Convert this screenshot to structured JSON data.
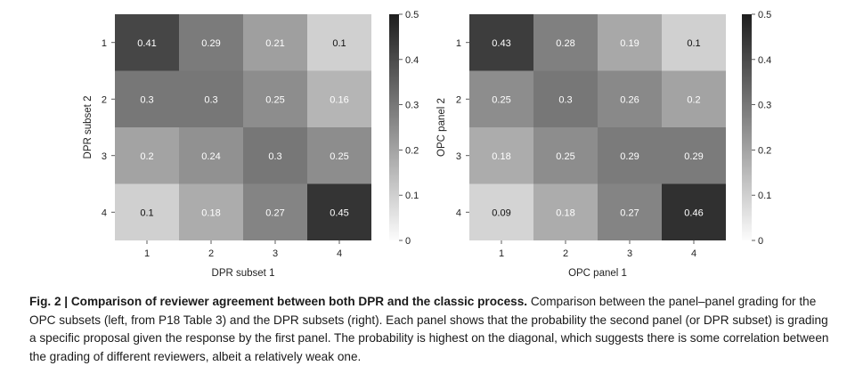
{
  "colorbar_ticks": [
    "0.5",
    "0.4",
    "0.3",
    "0.2",
    "0.1",
    "0"
  ],
  "chart_data": [
    {
      "type": "heatmap",
      "title": "",
      "xlabel": "DPR subset 1",
      "ylabel": "DPR subset 2",
      "x_categories": [
        "1",
        "2",
        "3",
        "4"
      ],
      "y_categories": [
        "1",
        "2",
        "3",
        "4"
      ],
      "values": [
        [
          0.41,
          0.29,
          0.21,
          0.1
        ],
        [
          0.3,
          0.3,
          0.25,
          0.16
        ],
        [
          0.2,
          0.24,
          0.3,
          0.25
        ],
        [
          0.1,
          0.18,
          0.27,
          0.45
        ]
      ],
      "colorbar_range": [
        0,
        0.5
      ],
      "colormap": "grayscale",
      "legend": "colorbar-right"
    },
    {
      "type": "heatmap",
      "title": "",
      "xlabel": "OPC panel 1",
      "ylabel": "OPC panel 2",
      "x_categories": [
        "1",
        "2",
        "3",
        "4"
      ],
      "y_categories": [
        "1",
        "2",
        "3",
        "4"
      ],
      "values": [
        [
          0.43,
          0.28,
          0.19,
          0.1
        ],
        [
          0.25,
          0.3,
          0.26,
          0.2
        ],
        [
          0.18,
          0.25,
          0.29,
          0.29
        ],
        [
          0.09,
          0.18,
          0.27,
          0.46
        ]
      ],
      "colorbar_range": [
        0,
        0.5
      ],
      "colormap": "grayscale",
      "legend": "colorbar-right"
    }
  ],
  "caption": {
    "lead": "Fig. 2 | Comparison of reviewer agreement between both DPR and the classic process.",
    "body": " Comparison between the panel–panel grading for the OPC subsets (left, from P18 Table 3) and the DPR subsets (right). Each panel shows that the probability the second panel (or DPR subset) is grading a specific proposal given the response by the first panel. The probability is highest on the diagonal, which suggests there is some correlation between the grading of different reviewers, albeit a relatively weak one."
  }
}
